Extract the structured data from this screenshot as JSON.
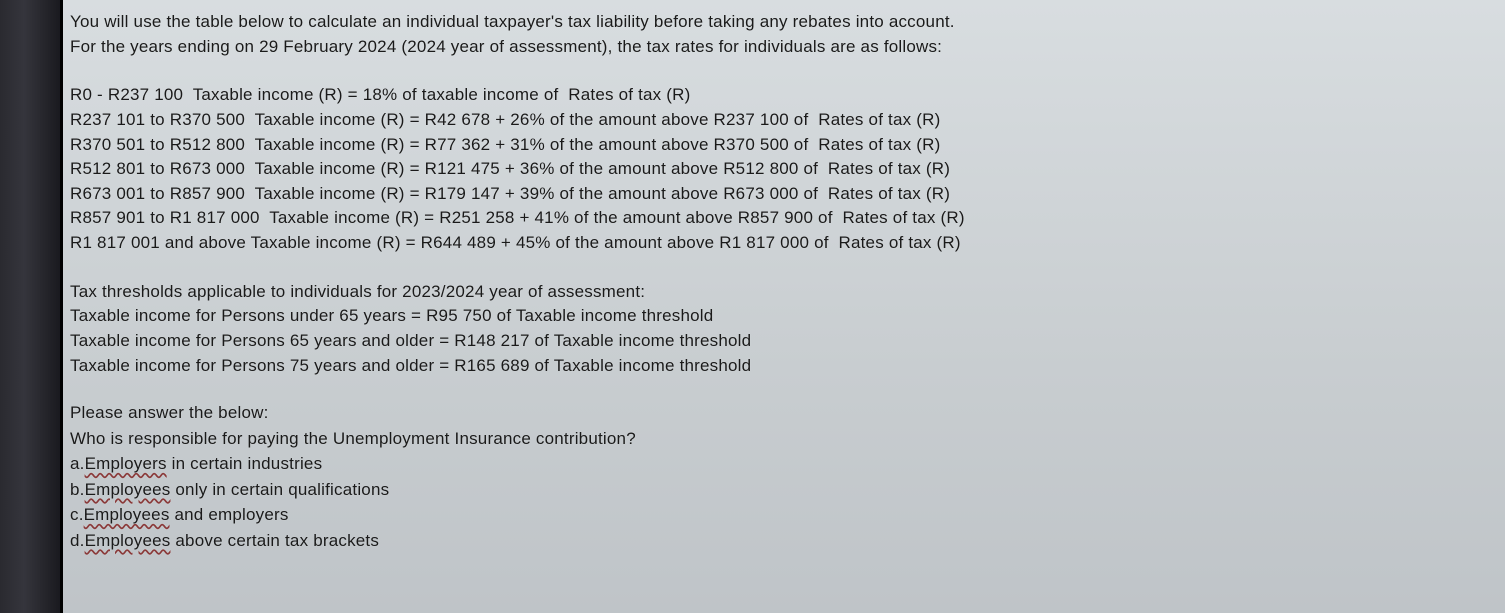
{
  "intro": {
    "line1": "You will use the table below to calculate an individual taxpayer's tax liability before taking any rebates into account.",
    "line2": "For the years ending on 29 February 2024 (2024 year of assessment), the tax rates for individuals are as follows:"
  },
  "brackets": {
    "b1": "R0 - R237 100  Taxable income (R) = 18% of taxable income of  Rates of tax (R)",
    "b2": "R237 101 to R370 500  Taxable income (R) = R42 678 + 26% of the amount above R237 100 of  Rates of tax (R)",
    "b3": "R370 501 to R512 800  Taxable income (R) = R77 362 + 31% of the amount above R370 500 of  Rates of tax (R)",
    "b4": "R512 801 to R673 000  Taxable income (R) = R121 475 + 36% of the amount above R512 800 of  Rates of tax (R)",
    "b5": "R673 001 to R857 900  Taxable income (R) = R179 147 + 39% of the amount above R673 000 of  Rates of tax (R)",
    "b6": "R857 901 to R1 817 000  Taxable income (R) = R251 258 + 41% of the amount above R857 900 of  Rates of tax (R)",
    "b7": "R1 817 001 and above Taxable income (R) = R644 489 + 45% of the amount above R1 817 000 of  Rates of tax (R)"
  },
  "thresholds": {
    "header": "Tax thresholds applicable to individuals for 2023/2024 year of assessment:",
    "t1": "Taxable income for Persons under 65 years = R95 750 of Taxable income threshold",
    "t2": "Taxable income for Persons 65 years and older = R148 217 of Taxable income threshold",
    "t3": "Taxable income for Persons 75 years and older = R165 689 of Taxable income threshold"
  },
  "question": {
    "prompt": "Please answer the below:",
    "text": "Who is responsible for paying the Unemployment Insurance contribution?",
    "optA_prefix": "a.",
    "optA_under": "Employers",
    "optA_rest": " in certain industries",
    "optB_prefix": "b.",
    "optB_under": "Employees",
    "optB_rest": " only in certain qualifications",
    "optC_prefix": "c.",
    "optC_under": "Employees",
    "optC_rest": " and employers",
    "optD_prefix": "d.",
    "optD_under": "Employees",
    "optD_rest": " above certain tax brackets"
  }
}
